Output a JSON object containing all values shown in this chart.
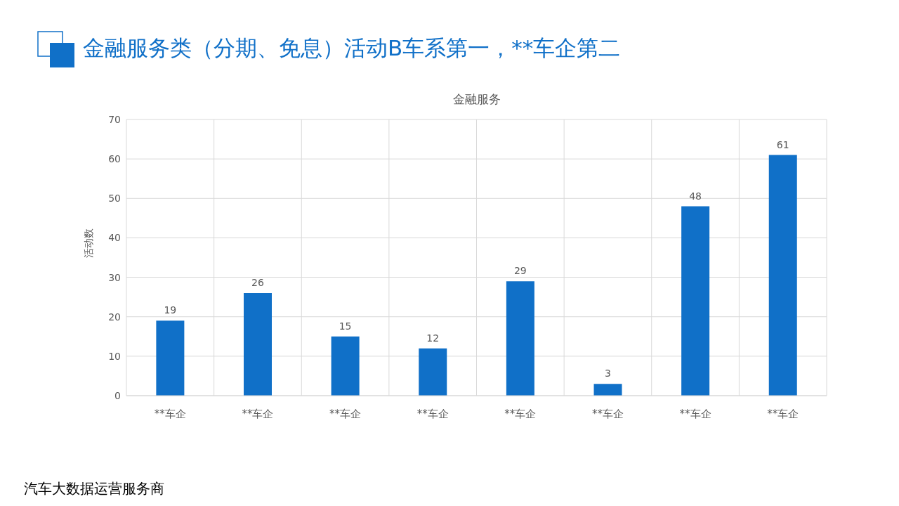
{
  "chart_data": {
    "type": "bar",
    "title": "金融服务类（分期、免息）活动B车系第一，**车企第二",
    "subtitle": "金融服务",
    "ylabel": "活动数",
    "categories": [
      "**车企",
      "**车企",
      "**车企",
      "**车企",
      "**车企",
      "**车企",
      "**车企",
      "**车企"
    ],
    "values": [
      19,
      26,
      15,
      12,
      29,
      3,
      48,
      61
    ],
    "color": "#1070c8",
    "ylim": [
      0,
      70
    ],
    "yticks": [
      0,
      10,
      20,
      30,
      40,
      50,
      60,
      70
    ],
    "grid": true,
    "data_labels": true,
    "annotations": [
      "汽车大数据运营服务商"
    ]
  }
}
